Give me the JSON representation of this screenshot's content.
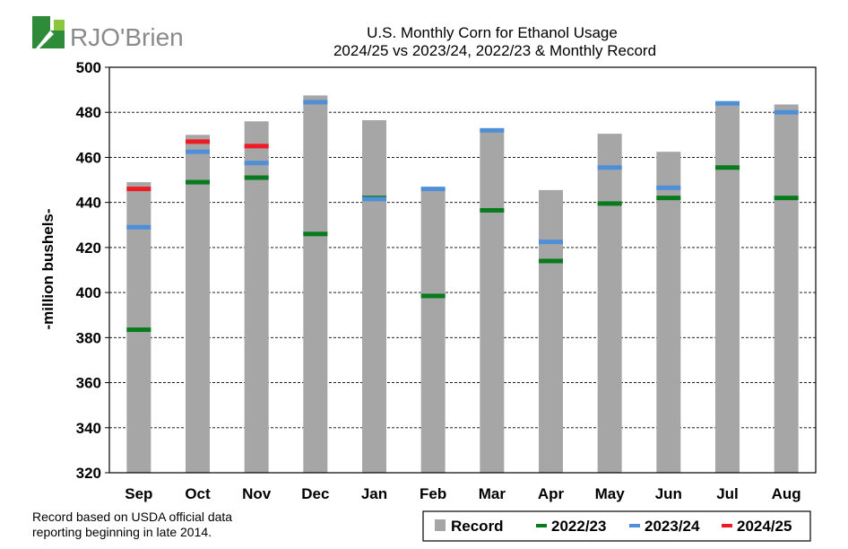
{
  "brand": {
    "name": "RJO'Brien",
    "accent": "#2e8b3a",
    "text_color": "#8a8a8a"
  },
  "chart_data": {
    "type": "bar",
    "title": "U.S. Monthly Corn for Ethanol Usage",
    "subtitle": "2024/25 vs 2023/24, 2022/23 & Monthly Record",
    "ylabel": "-million bushels-",
    "xlabel": "",
    "ylim": [
      320,
      500
    ],
    "yticks": [
      320,
      340,
      360,
      380,
      400,
      420,
      440,
      460,
      480,
      500
    ],
    "grid": true,
    "categories": [
      "Sep",
      "Oct",
      "Nov",
      "Dec",
      "Jan",
      "Feb",
      "Mar",
      "Apr",
      "May",
      "Jun",
      "Jul",
      "Aug"
    ],
    "bar_series": {
      "name": "Record",
      "color": "#a6a6a6",
      "values": [
        449,
        470,
        476,
        487.5,
        476.5,
        446,
        472.5,
        445.5,
        470.5,
        462.5,
        484,
        483.5
      ]
    },
    "marker_series": [
      {
        "name": "2022/23",
        "color": "#0a7a1e",
        "values": [
          383.5,
          449,
          451,
          426,
          442,
          398.5,
          436.5,
          414,
          439.5,
          442,
          455.5,
          442
        ]
      },
      {
        "name": "2023/24",
        "color": "#4f8fd8",
        "values": [
          429,
          462.5,
          457.5,
          484.5,
          441.5,
          446,
          472,
          422.5,
          455.5,
          446.5,
          484,
          480
        ]
      },
      {
        "name": "2024/25",
        "color": "#ee1b24",
        "values": [
          446,
          467,
          465,
          null,
          null,
          null,
          null,
          null,
          null,
          null,
          null,
          null
        ]
      }
    ],
    "legend": [
      "Record",
      "2022/23",
      "2023/24",
      "2024/25"
    ],
    "legend_position": "bottom-right"
  },
  "footnote": {
    "line1": "Record based on USDA official data",
    "line2": "reporting beginning in late 2014."
  }
}
